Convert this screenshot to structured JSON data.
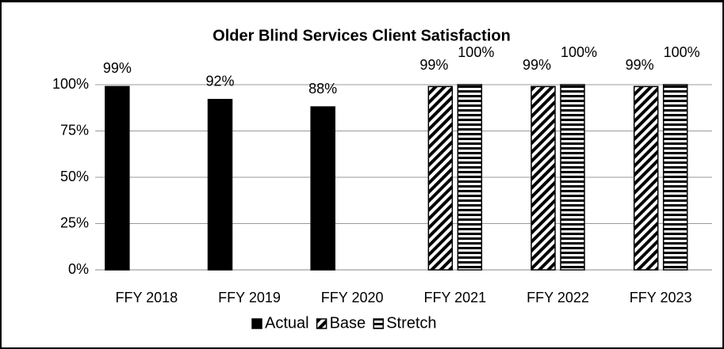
{
  "chart_data": {
    "type": "bar",
    "title": "Older Blind Services Client Satisfaction",
    "categories": [
      "FFY 2018",
      "FFY 2019",
      "FFY 2020",
      "FFY 2021",
      "FFY 2022",
      "FFY 2023"
    ],
    "series": [
      {
        "name": "Actual",
        "color": "#000000",
        "pattern": "solid",
        "values": [
          99,
          92,
          88,
          null,
          null,
          null
        ],
        "value_labels": [
          "99%",
          "92%",
          "88%",
          null,
          null,
          null
        ]
      },
      {
        "name": "Base",
        "color": "#000000",
        "pattern": "diagonal",
        "values": [
          null,
          null,
          null,
          99,
          99,
          99
        ],
        "value_labels": [
          null,
          null,
          null,
          "99%",
          "99%",
          "99%"
        ]
      },
      {
        "name": "Stretch",
        "color": "#000000",
        "pattern": "horizontal",
        "values": [
          null,
          null,
          null,
          100,
          100,
          100
        ],
        "value_labels": [
          null,
          null,
          null,
          "100%",
          "100%",
          "100%"
        ]
      }
    ],
    "ylim": [
      0,
      100
    ],
    "yticks": [
      {
        "value": 0,
        "label": "0%"
      },
      {
        "value": 25,
        "label": "25%"
      },
      {
        "value": 50,
        "label": "50%"
      },
      {
        "value": 75,
        "label": "75%"
      },
      {
        "value": 100,
        "label": "100%"
      }
    ],
    "grid": true,
    "legend": "bottom"
  }
}
